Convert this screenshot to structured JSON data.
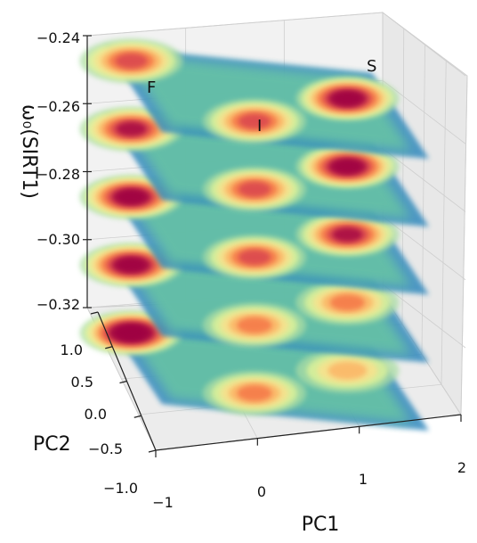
{
  "chart_data": {
    "type": "3d-stacked-density",
    "title": "",
    "zlabel": "ω₀(SIRT1)",
    "xlabel": "PC1",
    "ylabel": "PC2",
    "z_ticks": [
      "−0.24",
      "−0.26",
      "−0.28",
      "−0.30",
      "−0.32"
    ],
    "z_values": [
      -0.24,
      -0.26,
      -0.28,
      -0.3,
      -0.32
    ],
    "pc2_ticks": [
      "1.0",
      "0.5",
      "0.0",
      "−0.5",
      "−1.0"
    ],
    "pc1_ticks": [
      "−1",
      "0",
      "1",
      "2"
    ],
    "zlim": [
      -0.325,
      -0.235
    ],
    "xlim": [
      -1,
      2
    ],
    "ylim": [
      -1.0,
      1.0
    ],
    "layers": [
      {
        "z": -0.24,
        "peaks": [
          {
            "label": "F",
            "pc1": -0.8,
            "pc2": 0.7,
            "level": 0.45
          },
          {
            "label": "S",
            "pc1": 1.5,
            "pc2": 0.3,
            "level": 0.9
          },
          {
            "label": "I",
            "pc1": 0.2,
            "pc2": -0.5,
            "level": 0.5
          }
        ]
      },
      {
        "z": -0.26,
        "peaks": [
          {
            "pc1": -0.8,
            "pc2": 0.7,
            "level": 0.7
          },
          {
            "pc1": 1.5,
            "pc2": 0.3,
            "level": 0.85
          },
          {
            "pc1": 0.2,
            "pc2": -0.5,
            "level": 0.5
          }
        ]
      },
      {
        "z": -0.28,
        "peaks": [
          {
            "pc1": -0.8,
            "pc2": 0.7,
            "level": 0.85
          },
          {
            "pc1": 1.5,
            "pc2": 0.3,
            "level": 0.6
          },
          {
            "pc1": 0.2,
            "pc2": -0.5,
            "level": 0.45
          }
        ]
      },
      {
        "z": -0.3,
        "peaks": [
          {
            "pc1": -0.8,
            "pc2": 0.7,
            "level": 0.9
          },
          {
            "pc1": 1.5,
            "pc2": 0.3,
            "level": 0.35
          },
          {
            "pc1": 0.2,
            "pc2": -0.5,
            "level": 0.4
          }
        ]
      },
      {
        "z": -0.32,
        "peaks": [
          {
            "pc1": -0.8,
            "pc2": 0.7,
            "level": 0.95
          },
          {
            "pc1": 1.5,
            "pc2": 0.3,
            "level": 0.2
          },
          {
            "pc1": 0.2,
            "pc2": -0.5,
            "level": 0.25
          }
        ]
      }
    ],
    "annotations": [
      "F",
      "S",
      "I"
    ],
    "colormap": [
      "#5e4fa2",
      "#3288bd",
      "#66c2a5",
      "#abdda4",
      "#e6f598",
      "#fee08b",
      "#fdae61",
      "#f46d43",
      "#d53e4f",
      "#9e0142"
    ],
    "grid": true
  }
}
